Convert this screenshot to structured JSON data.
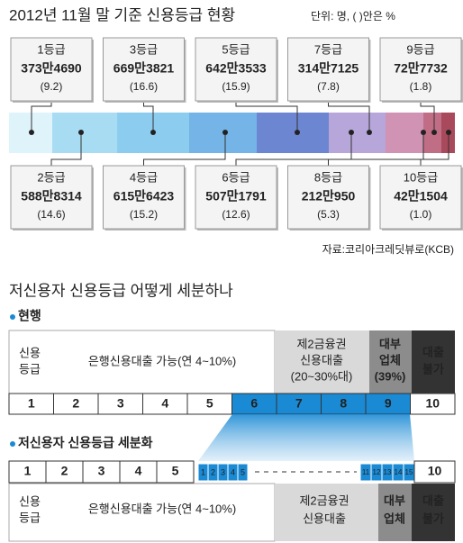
{
  "header": {
    "title": "2012년 11월 말 기준 신용등급 현황",
    "unit": "단위: 명, ( )안은 %"
  },
  "grades": [
    {
      "label": "1등급",
      "count": "373만4690",
      "pct": "(9.2)"
    },
    {
      "label": "2등급",
      "count": "588만8314",
      "pct": "(14.6)"
    },
    {
      "label": "3등급",
      "count": "669만3821",
      "pct": "(16.6)"
    },
    {
      "label": "4등급",
      "count": "615만6423",
      "pct": "(15.2)"
    },
    {
      "label": "5등급",
      "count": "642만3533",
      "pct": "(15.9)"
    },
    {
      "label": "6등급",
      "count": "507만1791",
      "pct": "(12.6)"
    },
    {
      "label": "7등급",
      "count": "314만7125",
      "pct": "(7.8)"
    },
    {
      "label": "8등급",
      "count": "212만950",
      "pct": "(5.3)"
    },
    {
      "label": "9등급",
      "count": "72만7732",
      "pct": "(1.8)"
    },
    {
      "label": "10등급",
      "count": "42만1504",
      "pct": "(1.0)"
    }
  ],
  "source": "자료:코리아크레딧뷰로(KCB)",
  "section2": {
    "title": "저신용자 신용등급 어떻게 세분하나",
    "current": {
      "heading": "현행",
      "grade_label": [
        "신용",
        "등급"
      ],
      "bank": "은행신용대출 가능(연 4~10%)",
      "second_tier": [
        "제2금융권",
        "신용대출",
        "(20~30%대)"
      ],
      "lender": [
        "대부",
        "업체",
        "(39%)"
      ],
      "none": [
        "대출",
        "불가"
      ],
      "grades": [
        "1",
        "2",
        "3",
        "4",
        "5",
        "6",
        "7",
        "8",
        "9",
        "10"
      ]
    },
    "subdivided": {
      "heading": "저신용자 신용등급 세분화",
      "grades": [
        "1",
        "2",
        "3",
        "4",
        "5"
      ],
      "sub_low": [
        "1",
        "2",
        "3",
        "4",
        "5"
      ],
      "sub_high": [
        "11",
        "12",
        "13",
        "14",
        "15"
      ],
      "last": "10",
      "grade_label": [
        "신용",
        "등급"
      ],
      "bank": "은행신용대출 가능(연 4~10%)",
      "second_tier": [
        "제2금융권",
        "신용대출"
      ],
      "lender": [
        "대부",
        "업체"
      ],
      "none": [
        "대출",
        "불가"
      ]
    }
  }
}
